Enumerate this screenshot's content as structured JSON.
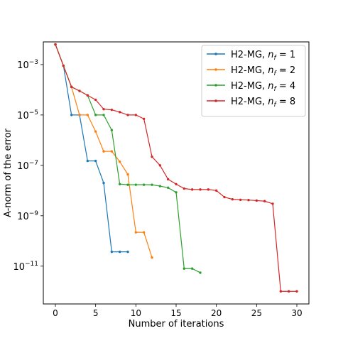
{
  "chart_data": {
    "type": "line",
    "title": "",
    "xlabel": "Number of iterations",
    "ylabel": "A-norm of the error",
    "yscale": "log",
    "xlim": [
      -1.5,
      31.5
    ],
    "ylim_exp": [
      -12.5,
      -2.1
    ],
    "xticks": [
      0,
      5,
      10,
      15,
      20,
      25,
      30
    ],
    "yticks": [
      {
        "exp": -3,
        "base": "10",
        "sup": "−3"
      },
      {
        "exp": -5,
        "base": "10",
        "sup": "−5"
      },
      {
        "exp": -7,
        "base": "10",
        "sup": "−7"
      },
      {
        "exp": -9,
        "base": "10",
        "sup": "−9"
      },
      {
        "exp": -11,
        "base": "10",
        "sup": "−11"
      }
    ],
    "legend_position": "top-right",
    "series": [
      {
        "name_prefix": "H2-MG, ",
        "name_var": "n",
        "name_sub": "f",
        "name_suffix": " = 1",
        "color": "#1f77b4",
        "x": [
          0,
          1,
          2,
          3,
          4,
          5,
          6,
          7,
          8,
          9
        ],
        "y": [
          0.0063,
          0.0009,
          1e-05,
          1e-05,
          1.5e-07,
          1.5e-07,
          2e-08,
          3.7e-11,
          3.7e-11,
          3.7e-11
        ]
      },
      {
        "name_prefix": "H2-MG, ",
        "name_var": "n",
        "name_sub": "f",
        "name_suffix": " = 2",
        "color": "#ff7f0e",
        "x": [
          0,
          1,
          2,
          3,
          4,
          5,
          6,
          7,
          8,
          9,
          10,
          11,
          12
        ],
        "y": [
          0.0063,
          0.0009,
          0.00013,
          1e-05,
          1e-05,
          2.2e-06,
          3.6e-07,
          3.6e-07,
          1.4e-07,
          4.4e-08,
          2.2e-10,
          2.2e-10,
          2.2e-11
        ]
      },
      {
        "name_prefix": "H2-MG, ",
        "name_var": "n",
        "name_sub": "f",
        "name_suffix": " = 4",
        "color": "#2ca02c",
        "x": [
          0,
          1,
          2,
          3,
          4,
          5,
          6,
          7,
          8,
          9,
          10,
          11,
          12,
          13,
          14,
          15,
          16,
          17,
          18
        ],
        "y": [
          0.0063,
          0.0009,
          0.00013,
          9e-05,
          6e-05,
          1e-05,
          1e-05,
          2.5e-06,
          1.8e-08,
          1.7e-08,
          1.7e-08,
          1.7e-08,
          1.7e-08,
          1.5e-08,
          1.3e-08,
          8.5e-09,
          8e-12,
          8e-12,
          5.5e-12
        ]
      },
      {
        "name_prefix": "H2-MG, ",
        "name_var": "n",
        "name_sub": "f",
        "name_suffix": " = 8",
        "color": "#d62728",
        "x": [
          0,
          1,
          2,
          3,
          4,
          5,
          6,
          7,
          8,
          9,
          10,
          11,
          12,
          13,
          14,
          15,
          16,
          17,
          18,
          19,
          20,
          21,
          22,
          23,
          24,
          25,
          26,
          27,
          28,
          29,
          30
        ],
        "y": [
          0.0063,
          0.0009,
          0.00013,
          9e-05,
          6e-05,
          4e-05,
          1.7e-05,
          1.6e-05,
          1.3e-05,
          1e-05,
          1e-05,
          7e-06,
          2.2e-07,
          1e-07,
          2.8e-08,
          1.8e-08,
          1.2e-08,
          1.1e-08,
          1.1e-08,
          1.1e-08,
          1e-08,
          5.5e-09,
          4.5e-09,
          4.3e-09,
          4.2e-09,
          4e-09,
          3.8e-09,
          3e-09,
          1e-12,
          1e-12,
          1e-12
        ]
      }
    ]
  }
}
